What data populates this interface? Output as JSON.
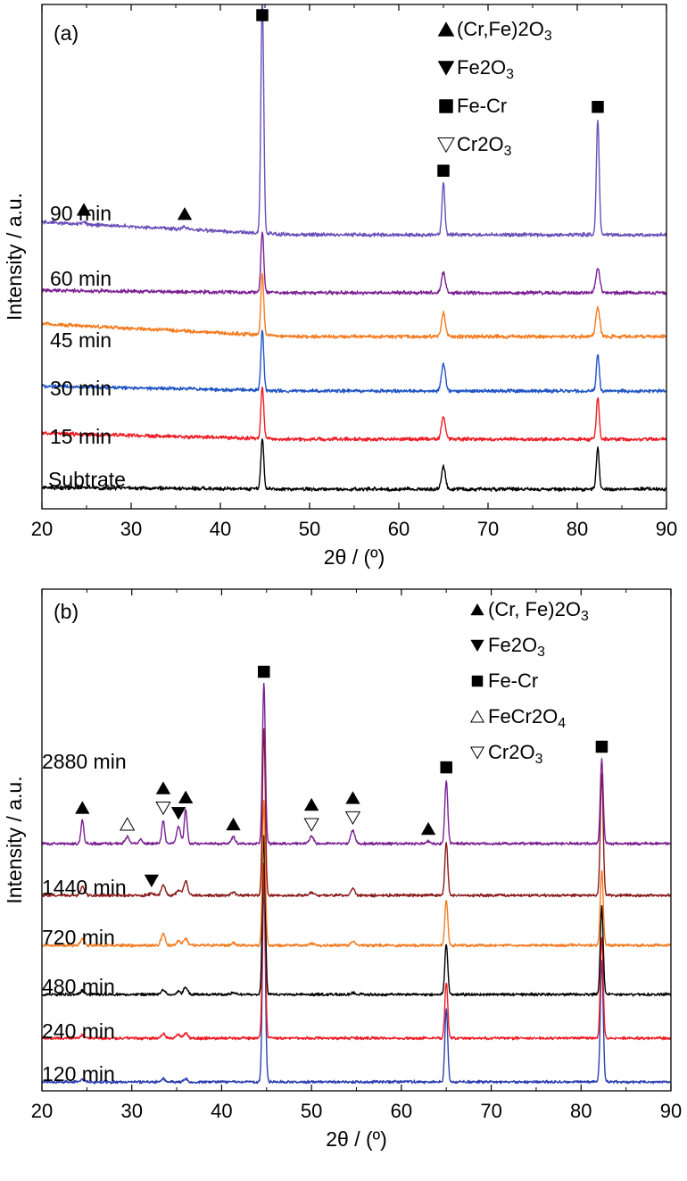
{
  "chart_data": [
    {
      "type": "line",
      "panel_label": "(a)",
      "xlabel": "2θ / (º)",
      "ylabel": "Intensity / a.u.",
      "xlim": [
        20,
        90
      ],
      "x_ticks": [
        20,
        30,
        40,
        50,
        60,
        70,
        80,
        90
      ],
      "legend_position": "top-right",
      "legend": [
        {
          "marker": "triangle-up-filled",
          "label": "(Cr,Fe)2O3"
        },
        {
          "marker": "triangle-down-filled",
          "label": "Fe2O3"
        },
        {
          "marker": "square-filled",
          "label": "Fe-Cr"
        },
        {
          "marker": "triangle-down-open",
          "label": "Cr2O3"
        }
      ],
      "series": [
        {
          "name": "Subtrate",
          "color": "#000000",
          "rise": 0.35,
          "peaks": [
            [
              44.7,
              10.5
            ],
            [
              65.0,
              4.5
            ],
            [
              82.3,
              8.5
            ]
          ]
        },
        {
          "name": "15 min",
          "color": "#ee1c25",
          "rise": 1.2,
          "peaks": [
            [
              44.7,
              10.5
            ],
            [
              65.0,
              4.5
            ],
            [
              82.3,
              8.5
            ]
          ]
        },
        {
          "name": "30 min",
          "color": "#2155c4",
          "rise": 1.0,
          "peaks": [
            [
              44.7,
              12.5
            ],
            [
              65.0,
              5.5
            ],
            [
              82.3,
              7.5
            ]
          ]
        },
        {
          "name": "45 min",
          "color": "#f47b20",
          "rise": 2.6,
          "peaks": [
            [
              44.7,
              12.5
            ],
            [
              65.0,
              4.8
            ],
            [
              82.3,
              6.0
            ]
          ]
        },
        {
          "name": "60 min",
          "color": "#7b2092",
          "rise": 0.5,
          "peaks": [
            [
              44.7,
              12.5
            ],
            [
              65.0,
              4.2
            ],
            [
              82.3,
              5.0
            ]
          ]
        },
        {
          "name": "90 min",
          "color": "#6a4fb8",
          "rise": 2.6,
          "peaks": [
            [
              24.7,
              0.4
            ],
            [
              36.0,
              0.6
            ],
            [
              44.7,
              47.5
            ],
            [
              65.0,
              10.5
            ],
            [
              82.3,
              23.5
            ]
          ]
        }
      ],
      "phase_markers": [
        {
          "marker": "triangle-up-filled",
          "x": 24.7,
          "series": "90 min"
        },
        {
          "marker": "triangle-up-filled",
          "x": 36.0,
          "series": "90 min"
        },
        {
          "marker": "square-filled",
          "x": 44.7,
          "series": "90 min"
        },
        {
          "marker": "square-filled",
          "x": 65.0,
          "series": "90 min"
        },
        {
          "marker": "square-filled",
          "x": 82.3,
          "series": "90 min"
        }
      ]
    },
    {
      "type": "line",
      "panel_label": "(b)",
      "xlabel": "2θ / (º)",
      "ylabel": "Intensity / a.u.",
      "xlim": [
        20,
        90
      ],
      "x_ticks": [
        20,
        30,
        40,
        50,
        60,
        70,
        80,
        90
      ],
      "legend_position": "top-right",
      "legend": [
        {
          "marker": "triangle-up-filled",
          "label": "(Cr, Fe)2O3"
        },
        {
          "marker": "triangle-down-filled",
          "label": "Fe2O3"
        },
        {
          "marker": "square-filled",
          "label": "Fe-Cr"
        },
        {
          "marker": "triangle-up-open",
          "label": "FeCr2O4"
        },
        {
          "marker": "triangle-down-open",
          "label": "Cr2O3"
        }
      ],
      "series": [
        {
          "name": "120 min",
          "color": "#2d3fb0",
          "rise": 0,
          "peaks": [
            [
              24.5,
              0.6
            ],
            [
              33.5,
              0.8
            ],
            [
              36.0,
              0.8
            ],
            [
              44.7,
              53.0
            ],
            [
              65.0,
              19.5
            ],
            [
              82.3,
              32.5
            ]
          ]
        },
        {
          "name": "240 min",
          "color": "#ee1c25",
          "rise": 0,
          "peaks": [
            [
              24.5,
              0.8
            ],
            [
              33.5,
              1.2
            ],
            [
              35.2,
              1.0
            ],
            [
              36.0,
              1.4
            ],
            [
              44.7,
              46.5
            ],
            [
              65.0,
              15.0
            ],
            [
              82.3,
              27.0
            ]
          ]
        },
        {
          "name": "480 min",
          "color": "#000000",
          "rise": 0,
          "peaks": [
            [
              24.5,
              1.0
            ],
            [
              33.5,
              1.2
            ],
            [
              35.2,
              0.8
            ],
            [
              36.0,
              2.0
            ],
            [
              41.3,
              0.4
            ],
            [
              44.7,
              42.5
            ],
            [
              54.6,
              0.4
            ],
            [
              65.0,
              13.5
            ],
            [
              82.3,
              23.5
            ]
          ]
        },
        {
          "name": "720 min",
          "color": "#f47b20",
          "rise": 0,
          "peaks": [
            [
              24.5,
              1.8
            ],
            [
              33.5,
              3.2
            ],
            [
              35.2,
              1.2
            ],
            [
              36.0,
              1.8
            ],
            [
              41.3,
              0.6
            ],
            [
              44.7,
              38.5
            ],
            [
              50.0,
              0.5
            ],
            [
              54.6,
              1.2
            ],
            [
              65.0,
              12.0
            ],
            [
              82.3,
              20.0
            ]
          ]
        },
        {
          "name": "1440 min",
          "color": "#8b1a1a",
          "rise": 0,
          "peaks": [
            [
              24.5,
              2.2
            ],
            [
              32.2,
              0.6
            ],
            [
              33.5,
              2.6
            ],
            [
              35.2,
              1.4
            ],
            [
              36.0,
              3.8
            ],
            [
              41.3,
              0.8
            ],
            [
              44.7,
              44.5
            ],
            [
              50.0,
              0.8
            ],
            [
              54.6,
              1.8
            ],
            [
              65.0,
              14.0
            ],
            [
              82.3,
              32.5
            ]
          ]
        },
        {
          "name": "2880 min",
          "color": "#7b2092",
          "rise": 0,
          "peaks": [
            [
              24.5,
              6.2
            ],
            [
              29.5,
              1.8
            ],
            [
              31.0,
              1.0
            ],
            [
              33.5,
              6.2
            ],
            [
              35.2,
              4.8
            ],
            [
              36.0,
              9.0
            ],
            [
              41.3,
              1.8
            ],
            [
              44.7,
              42.5
            ],
            [
              50.0,
              1.8
            ],
            [
              54.6,
              3.6
            ],
            [
              63.0,
              0.6
            ],
            [
              65.0,
              17.0
            ],
            [
              82.3,
              22.5
            ]
          ]
        }
      ],
      "phase_markers": [
        {
          "marker": "triangle-up-filled",
          "x": 24.5,
          "series": "2880 min"
        },
        {
          "marker": "triangle-up-open",
          "x": 29.5,
          "series": "2880 min"
        },
        {
          "marker": "triangle-down-open",
          "x": 33.5,
          "series": "2880 min"
        },
        {
          "marker": "triangle-up-filled",
          "x": 33.5,
          "series": "2880 min"
        },
        {
          "marker": "triangle-down-filled",
          "x": 35.2,
          "series": "2880 min"
        },
        {
          "marker": "triangle-up-filled",
          "x": 36.0,
          "series": "2880 min"
        },
        {
          "marker": "triangle-up-filled",
          "x": 41.3,
          "series": "2880 min"
        },
        {
          "marker": "square-filled",
          "x": 44.7,
          "series": "2880 min"
        },
        {
          "marker": "triangle-down-open",
          "x": 50.0,
          "series": "2880 min"
        },
        {
          "marker": "triangle-up-filled",
          "x": 50.0,
          "series": "2880 min"
        },
        {
          "marker": "triangle-down-open",
          "x": 54.6,
          "series": "2880 min"
        },
        {
          "marker": "triangle-up-filled",
          "x": 54.6,
          "series": "2880 min"
        },
        {
          "marker": "triangle-up-filled",
          "x": 63.0,
          "series": "2880 min"
        },
        {
          "marker": "square-filled",
          "x": 65.0,
          "series": "2880 min"
        },
        {
          "marker": "square-filled",
          "x": 82.3,
          "series": "2880 min"
        },
        {
          "marker": "triangle-down-filled",
          "x": 32.2,
          "series": "1440 min"
        }
      ]
    }
  ]
}
